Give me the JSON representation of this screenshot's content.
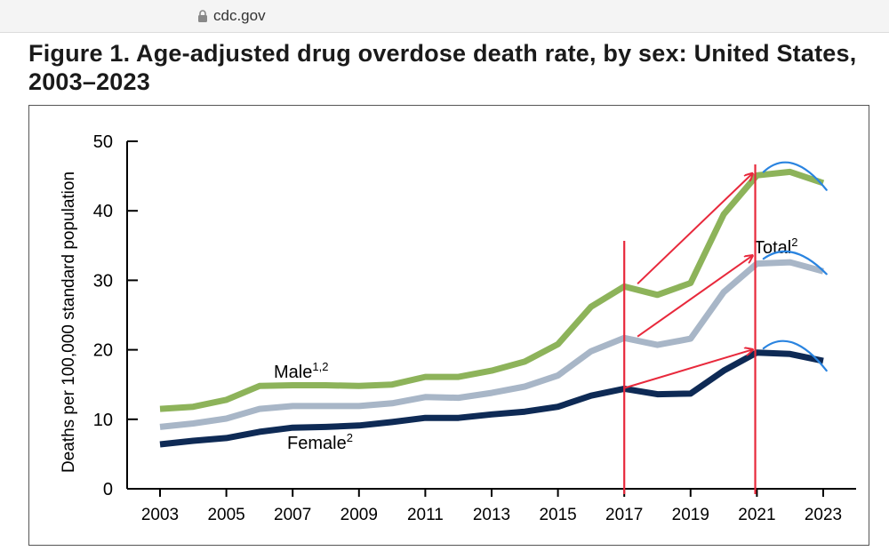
{
  "browser": {
    "url": "cdc.gov"
  },
  "figure": {
    "title": "Figure 1. Age-adjusted drug overdose death rate, by sex: United States, 2003–2023"
  },
  "chart_data": {
    "type": "line",
    "title": "Figure 1. Age-adjusted drug overdose death rate, by sex: United States, 2003–2023",
    "ylabel": "Deaths per 100,000 standard population",
    "xlabel": "",
    "ylim": [
      0,
      50
    ],
    "yticks": [
      0,
      10,
      20,
      30,
      40,
      50
    ],
    "x": [
      2003,
      2004,
      2005,
      2006,
      2007,
      2008,
      2009,
      2010,
      2011,
      2012,
      2013,
      2014,
      2015,
      2016,
      2017,
      2018,
      2019,
      2020,
      2021,
      2022,
      2023
    ],
    "xtick_labels": [
      "2003",
      "2005",
      "2007",
      "2009",
      "2011",
      "2013",
      "2015",
      "2017",
      "2019",
      "2021",
      "2023"
    ],
    "series": [
      {
        "name": "Male",
        "label": "Male",
        "sup": "1,2",
        "color": "#8db35a",
        "values": [
          11.5,
          11.8,
          12.8,
          14.8,
          14.9,
          14.9,
          14.8,
          15.0,
          16.1,
          16.1,
          17.0,
          18.3,
          20.8,
          26.2,
          29.1,
          27.9,
          29.6,
          39.5,
          45.1,
          45.6,
          44.0
        ]
      },
      {
        "name": "Total",
        "label": "Total",
        "sup": "2",
        "color": "#a8b6c7",
        "values": [
          8.9,
          9.4,
          10.1,
          11.5,
          11.9,
          11.9,
          11.9,
          12.3,
          13.2,
          13.1,
          13.8,
          14.7,
          16.3,
          19.8,
          21.7,
          20.7,
          21.6,
          28.3,
          32.4,
          32.6,
          31.3
        ]
      },
      {
        "name": "Female",
        "label": "Female",
        "sup": "2",
        "color": "#0e2a55",
        "values": [
          6.4,
          6.9,
          7.3,
          8.2,
          8.8,
          8.9,
          9.1,
          9.6,
          10.2,
          10.2,
          10.7,
          11.1,
          11.8,
          13.4,
          14.4,
          13.6,
          13.7,
          17.0,
          19.6,
          19.4,
          18.4
        ]
      }
    ],
    "annotations": {
      "vertical_lines_at": [
        2017.0,
        2020.95
      ],
      "arrows": [
        {
          "from": [
            2017.4,
            29.5
          ],
          "to": [
            2020.85,
            45.3
          ]
        },
        {
          "from": [
            2017.4,
            21.9
          ],
          "to": [
            2020.85,
            33.5
          ]
        },
        {
          "from": [
            2017.0,
            14.5
          ],
          "to": [
            2020.85,
            20.0
          ]
        }
      ],
      "arcs": [
        {
          "from": [
            2021.2,
            45.6
          ],
          "peak": [
            2022.1,
            46.8
          ],
          "to": [
            2023.1,
            43.0
          ]
        },
        {
          "from": [
            2021.2,
            33.1
          ],
          "peak": [
            2022.1,
            34.0
          ],
          "to": [
            2023.1,
            30.9
          ]
        },
        {
          "from": [
            2021.2,
            20.2
          ],
          "peak": [
            2022.1,
            21.0
          ],
          "to": [
            2023.1,
            17.0
          ]
        }
      ]
    }
  }
}
